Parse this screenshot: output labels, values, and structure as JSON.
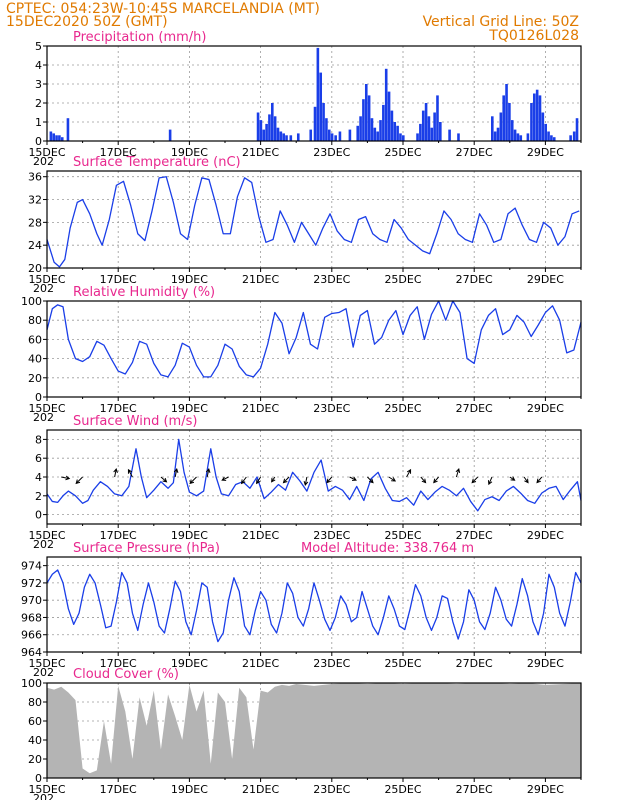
{
  "header": {
    "line1_left": "CPTEC:   054:23W-10:45S   MARCELANDIA (MT)",
    "line2_left": "15DEC2020 50Z (GMT)",
    "line1_right": "Vertical Grid Line: 50Z",
    "line2_right": "TQ0126L028"
  },
  "colors": {
    "header": "#e07a00",
    "panel_title": "#e8288e",
    "series": "#1a3ee8",
    "cloud": "#b4b4b4",
    "grid": "#9a9a9a"
  },
  "x_axis": {
    "ticks": [
      "15DEC",
      "17DEC",
      "19DEC",
      "21DEC",
      "23DEC",
      "25DEC",
      "27DEC",
      "29DEC"
    ],
    "tick_days": [
      0,
      2,
      4,
      6,
      8,
      10,
      12,
      14
    ],
    "range_days": [
      0,
      15
    ],
    "year_fragment": "202"
  },
  "chart_data": [
    {
      "type": "bar",
      "title": "Precipitation (mm/h)",
      "ylim": [
        0,
        5
      ],
      "yticks": [
        0,
        1,
        2,
        3,
        4,
        5
      ],
      "grid": true,
      "color": "#1a3ee8",
      "x_day": [
        0.1,
        0.18,
        0.26,
        0.34,
        0.42,
        0.58,
        3.45,
        5.92,
        6.0,
        6.08,
        6.16,
        6.24,
        6.32,
        6.4,
        6.48,
        6.56,
        6.64,
        6.72,
        6.84,
        7.05,
        7.4,
        7.52,
        7.6,
        7.68,
        7.76,
        7.84,
        7.92,
        8.0,
        8.1,
        8.22,
        8.5,
        8.72,
        8.8,
        8.88,
        8.96,
        9.04,
        9.12,
        9.2,
        9.28,
        9.36,
        9.44,
        9.52,
        9.6,
        9.68,
        9.76,
        9.84,
        9.92,
        10.0,
        10.4,
        10.48,
        10.56,
        10.64,
        10.72,
        10.8,
        10.88,
        10.96,
        11.04,
        11.3,
        11.55,
        12.5,
        12.58,
        12.66,
        12.74,
        12.82,
        12.9,
        12.98,
        13.06,
        13.14,
        13.22,
        13.3,
        13.5,
        13.6,
        13.68,
        13.76,
        13.84,
        13.92,
        14.0,
        14.08,
        14.16,
        14.24,
        14.7,
        14.8,
        14.88
      ],
      "values": [
        0.5,
        0.4,
        0.3,
        0.3,
        0.2,
        1.2,
        0.6,
        1.5,
        1.1,
        0.6,
        0.9,
        1.4,
        2.0,
        1.3,
        0.7,
        0.5,
        0.4,
        0.3,
        0.3,
        0.4,
        0.6,
        1.8,
        4.9,
        3.6,
        2.0,
        1.2,
        0.6,
        0.4,
        0.3,
        0.5,
        0.6,
        0.8,
        1.3,
        2.2,
        3.0,
        2.4,
        1.2,
        0.7,
        0.5,
        1.1,
        1.9,
        3.8,
        2.6,
        1.6,
        1.0,
        0.8,
        0.4,
        0.3,
        0.4,
        0.9,
        1.6,
        2.0,
        1.3,
        0.7,
        1.5,
        2.4,
        1.0,
        0.6,
        0.4,
        1.3,
        0.5,
        0.7,
        1.5,
        2.4,
        3.0,
        2.0,
        1.1,
        0.6,
        0.4,
        0.3,
        0.4,
        2.0,
        2.5,
        2.7,
        2.4,
        1.5,
        0.9,
        0.5,
        0.3,
        0.2,
        0.3,
        0.5,
        1.2
      ]
    },
    {
      "type": "line",
      "title": "Surface Temperature (nC)",
      "ylim": [
        20,
        37
      ],
      "yticks": [
        20,
        24,
        28,
        32,
        36
      ],
      "grid": true,
      "color": "#1a3ee8",
      "x_day": [
        0.0,
        0.2,
        0.35,
        0.5,
        0.65,
        0.85,
        1.0,
        1.2,
        1.4,
        1.55,
        1.75,
        1.95,
        2.15,
        2.35,
        2.55,
        2.75,
        2.95,
        3.15,
        3.35,
        3.55,
        3.75,
        3.95,
        4.15,
        4.35,
        4.55,
        4.75,
        4.95,
        5.15,
        5.35,
        5.55,
        5.75,
        5.95,
        6.15,
        6.35,
        6.55,
        6.75,
        6.95,
        7.15,
        7.35,
        7.55,
        7.75,
        7.95,
        8.15,
        8.35,
        8.55,
        8.75,
        8.95,
        9.15,
        9.35,
        9.55,
        9.75,
        9.95,
        10.15,
        10.35,
        10.55,
        10.75,
        10.95,
        11.15,
        11.35,
        11.55,
        11.75,
        11.95,
        12.15,
        12.35,
        12.55,
        12.75,
        12.95,
        13.15,
        13.35,
        13.55,
        13.75,
        13.95,
        14.15,
        14.35,
        14.55,
        14.75,
        14.95
      ],
      "values": [
        25,
        21,
        20.2,
        21.5,
        27,
        31.5,
        32,
        29.5,
        26,
        24,
        28.5,
        34.5,
        35.2,
        31,
        26,
        24.8,
        30,
        35.8,
        36,
        31.5,
        26,
        25,
        31,
        35.8,
        35.5,
        31,
        26,
        26,
        32.5,
        35.8,
        35,
        29,
        24.5,
        25,
        30,
        27.5,
        24.5,
        28,
        26,
        24,
        27,
        29.5,
        26.5,
        25,
        24.5,
        28.5,
        29,
        26,
        25,
        24.5,
        28.5,
        27,
        25,
        24,
        23,
        22.5,
        26,
        30,
        28.5,
        26,
        25,
        24.5,
        29.5,
        27.5,
        24.5,
        25,
        29.5,
        30.5,
        27.5,
        25,
        24.5,
        28,
        27,
        24,
        25.5,
        29.5,
        30
      ]
    },
    {
      "type": "line",
      "title": "Relative Humidity (%)",
      "ylim": [
        0,
        100
      ],
      "yticks": [
        0,
        20,
        40,
        60,
        80,
        100
      ],
      "grid": true,
      "color": "#1a3ee8",
      "x_day": [
        0.0,
        0.15,
        0.3,
        0.45,
        0.6,
        0.8,
        1.0,
        1.2,
        1.4,
        1.6,
        1.8,
        2.0,
        2.2,
        2.4,
        2.6,
        2.8,
        3.0,
        3.2,
        3.4,
        3.6,
        3.8,
        4.0,
        4.2,
        4.4,
        4.6,
        4.8,
        5.0,
        5.2,
        5.4,
        5.6,
        5.8,
        6.0,
        6.2,
        6.4,
        6.6,
        6.8,
        7.0,
        7.2,
        7.4,
        7.6,
        7.8,
        8.0,
        8.2,
        8.4,
        8.6,
        8.8,
        9.0,
        9.2,
        9.4,
        9.6,
        9.8,
        10.0,
        10.2,
        10.4,
        10.6,
        10.8,
        11.0,
        11.2,
        11.4,
        11.6,
        11.8,
        12.0,
        12.2,
        12.4,
        12.6,
        12.8,
        13.0,
        13.2,
        13.4,
        13.6,
        13.8,
        14.0,
        14.2,
        14.4,
        14.6,
        14.8,
        15.0
      ],
      "values": [
        70,
        92,
        96,
        94,
        60,
        40,
        37,
        42,
        58,
        54,
        40,
        27,
        24,
        36,
        58,
        55,
        35,
        23,
        21,
        33,
        56,
        52,
        33,
        21,
        21,
        33,
        55,
        50,
        32,
        23,
        21,
        30,
        55,
        88,
        77,
        45,
        62,
        88,
        55,
        50,
        83,
        87,
        88,
        92,
        52,
        85,
        90,
        55,
        62,
        80,
        90,
        65,
        85,
        94,
        60,
        86,
        100,
        80,
        100,
        88,
        40,
        35,
        70,
        85,
        92,
        65,
        70,
        85,
        78,
        63,
        75,
        88,
        95,
        80,
        46,
        49,
        78
      ]
    },
    {
      "type": "line",
      "title": "Surface Wind (m/s)",
      "ylim": [
        -1,
        9
      ],
      "yticks": [
        0,
        2,
        4,
        6,
        8
      ],
      "grid": true,
      "color": "#1a3ee8",
      "x_day": [
        0.0,
        0.15,
        0.3,
        0.45,
        0.6,
        0.8,
        1.0,
        1.15,
        1.3,
        1.5,
        1.7,
        1.9,
        2.1,
        2.3,
        2.5,
        2.65,
        2.8,
        3.0,
        3.2,
        3.4,
        3.55,
        3.7,
        3.85,
        4.0,
        4.2,
        4.4,
        4.6,
        4.75,
        4.9,
        5.1,
        5.3,
        5.5,
        5.7,
        5.9,
        6.1,
        6.3,
        6.5,
        6.7,
        6.9,
        7.1,
        7.3,
        7.5,
        7.7,
        7.9,
        8.1,
        8.3,
        8.5,
        8.7,
        8.9,
        9.1,
        9.3,
        9.5,
        9.7,
        9.9,
        10.1,
        10.3,
        10.5,
        10.7,
        10.9,
        11.1,
        11.3,
        11.5,
        11.7,
        11.9,
        12.1,
        12.3,
        12.5,
        12.7,
        12.9,
        13.1,
        13.3,
        13.5,
        13.7,
        13.9,
        14.1,
        14.3,
        14.5,
        14.7,
        14.9,
        15.0
      ],
      "values": [
        2.2,
        1.4,
        1.3,
        2.0,
        2.5,
        2.0,
        1.2,
        1.5,
        2.6,
        3.5,
        3.0,
        2.2,
        2.0,
        3.0,
        7.0,
        4.0,
        1.8,
        2.6,
        3.5,
        2.8,
        3.4,
        8.0,
        4.5,
        2.4,
        2.0,
        2.5,
        7.0,
        4.0,
        2.2,
        2.0,
        3.2,
        3.5,
        2.8,
        4.0,
        1.7,
        2.4,
        3.2,
        2.6,
        4.5,
        3.6,
        2.5,
        4.5,
        5.8,
        2.5,
        3.0,
        2.6,
        1.6,
        3.0,
        1.5,
        3.8,
        4.5,
        2.8,
        1.5,
        1.4,
        1.8,
        1.0,
        2.5,
        1.6,
        2.4,
        3.0,
        2.6,
        2.0,
        2.8,
        1.4,
        0.4,
        1.6,
        1.9,
        1.5,
        2.5,
        3.0,
        2.3,
        1.5,
        1.2,
        2.3,
        2.8,
        3.0,
        1.6,
        2.6,
        3.5,
        1.5
      ],
      "arrows": {
        "x_day": [
          0.4,
          1.0,
          1.9,
          2.4,
          3.2,
          3.6,
          4.2,
          4.5,
          5.1,
          5.6,
          6.0,
          6.4,
          6.8,
          7.3,
          8.0,
          8.5,
          9.0,
          9.6,
          10.1,
          10.5,
          11.0,
          11.5,
          12.1,
          12.5,
          13.0,
          13.4,
          13.9
        ],
        "dx": [
          1.0,
          -0.8,
          0.2,
          -0.5,
          0.7,
          0.2,
          -0.8,
          0.2,
          -0.8,
          -0.6,
          -0.5,
          -0.4,
          -0.7,
          -0.2,
          -0.6,
          0.8,
          0.7,
          0.8,
          0.5,
          0.6,
          -0.6,
          0.3,
          -0.7,
          -0.4,
          0.6,
          0.5,
          -0.6
        ],
        "dy": [
          -0.2,
          -0.8,
          1.0,
          0.9,
          -0.6,
          1.0,
          -0.8,
          1.0,
          -0.4,
          -0.8,
          -0.8,
          -0.6,
          -0.7,
          -1.0,
          -0.7,
          -0.4,
          -0.7,
          -0.5,
          0.9,
          -0.7,
          -0.7,
          1.0,
          -0.7,
          -0.9,
          -0.4,
          -0.7,
          -0.7
        ]
      }
    },
    {
      "type": "line",
      "title": "Surface Pressure (hPa)",
      "annotation": "Model Altitude: 338.764 m",
      "ylim": [
        964,
        975
      ],
      "yticks": [
        964,
        966,
        968,
        970,
        972,
        974
      ],
      "grid": true,
      "color": "#1a3ee8",
      "x_day": [
        0.0,
        0.15,
        0.3,
        0.45,
        0.6,
        0.75,
        0.9,
        1.05,
        1.2,
        1.35,
        1.5,
        1.65,
        1.8,
        1.95,
        2.1,
        2.25,
        2.4,
        2.55,
        2.7,
        2.85,
        3.0,
        3.15,
        3.3,
        3.45,
        3.6,
        3.75,
        3.9,
        4.05,
        4.2,
        4.35,
        4.5,
        4.65,
        4.8,
        4.95,
        5.1,
        5.25,
        5.4,
        5.55,
        5.7,
        5.85,
        6.0,
        6.15,
        6.3,
        6.45,
        6.6,
        6.75,
        6.9,
        7.05,
        7.2,
        7.35,
        7.5,
        7.65,
        7.8,
        7.95,
        8.1,
        8.25,
        8.4,
        8.55,
        8.7,
        8.85,
        9.0,
        9.15,
        9.3,
        9.45,
        9.6,
        9.75,
        9.9,
        10.05,
        10.2,
        10.35,
        10.5,
        10.65,
        10.8,
        10.95,
        11.1,
        11.25,
        11.4,
        11.55,
        11.7,
        11.85,
        12.0,
        12.15,
        12.3,
        12.45,
        12.6,
        12.75,
        12.9,
        13.05,
        13.2,
        13.35,
        13.5,
        13.65,
        13.8,
        13.95,
        14.1,
        14.25,
        14.4,
        14.55,
        14.7,
        14.85,
        15.0
      ],
      "values": [
        972,
        973,
        973.5,
        972,
        969,
        967.2,
        968.5,
        971.5,
        973,
        972,
        969.5,
        966.8,
        967,
        969.8,
        973.2,
        972,
        968.5,
        966.5,
        969.5,
        972,
        969.8,
        967,
        966.2,
        969,
        972.2,
        971,
        967.5,
        966,
        968.8,
        972,
        971.5,
        967.5,
        965.2,
        966.2,
        970,
        972.6,
        971,
        967,
        966,
        968.8,
        971,
        970,
        967.2,
        966.2,
        968.5,
        972,
        970.8,
        968,
        967,
        969,
        972,
        970,
        967.8,
        966.5,
        968,
        970.5,
        969.5,
        967.5,
        968,
        971,
        969,
        967,
        966,
        968,
        970.5,
        969,
        967,
        966.6,
        969,
        971.8,
        970.5,
        968,
        966.5,
        968,
        970.5,
        970.2,
        967.5,
        965.5,
        967.5,
        971.2,
        970,
        967.5,
        966.6,
        968.5,
        971.5,
        970,
        967.8,
        967,
        969.5,
        972.5,
        970.5,
        967.5,
        966,
        968.5,
        973,
        971.5,
        968.5,
        967,
        969.8,
        973.2,
        972
      ]
    },
    {
      "type": "area",
      "title": "Cloud Cover (%)",
      "ylim": [
        0,
        100
      ],
      "yticks": [
        0,
        20,
        40,
        60,
        80,
        100
      ],
      "grid": true,
      "color": "#b4b4b4",
      "x_day": [
        0.0,
        0.2,
        0.4,
        0.6,
        0.8,
        1.0,
        1.2,
        1.4,
        1.6,
        1.8,
        2.0,
        2.2,
        2.4,
        2.6,
        2.8,
        3.0,
        3.2,
        3.4,
        3.6,
        3.8,
        4.0,
        4.2,
        4.4,
        4.6,
        4.8,
        5.0,
        5.2,
        5.4,
        5.6,
        5.8,
        6.0,
        6.2,
        6.4,
        6.6,
        6.8,
        7.0,
        7.5,
        8.0,
        8.5,
        9.0,
        9.5,
        10.0,
        10.5,
        11.0,
        11.5,
        12.0,
        12.5,
        13.0,
        13.5,
        14.0,
        14.5,
        15.0
      ],
      "values": [
        95,
        93,
        96,
        90,
        82,
        10,
        5,
        8,
        60,
        15,
        97,
        70,
        20,
        85,
        55,
        92,
        30,
        88,
        65,
        40,
        98,
        70,
        92,
        15,
        90,
        80,
        20,
        95,
        85,
        30,
        92,
        90,
        96,
        98,
        97,
        99,
        97,
        99,
        100,
        99,
        100,
        99,
        100,
        100,
        99,
        100,
        100,
        99,
        100,
        98,
        99,
        100
      ]
    }
  ]
}
